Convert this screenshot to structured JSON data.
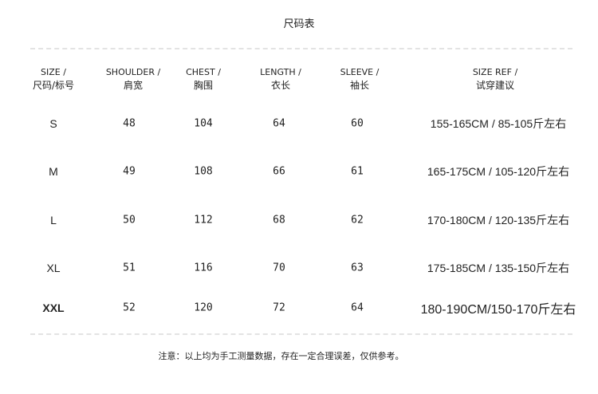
{
  "title": "尺码表",
  "headers": [
    {
      "en": "SIZE /",
      "cn": "尺码/标号"
    },
    {
      "en": "SHOULDER /",
      "cn": "肩宽"
    },
    {
      "en": "CHEST /",
      "cn": "胸围"
    },
    {
      "en": "LENGTH /",
      "cn": "衣长"
    },
    {
      "en": "SLEEVE /",
      "cn": "袖长"
    },
    {
      "en": "SIZE REF /",
      "cn": "试穿建议"
    }
  ],
  "rows": [
    [
      "S",
      "48",
      "104",
      "64",
      "60",
      "155-165CM / 85-105斤左右"
    ],
    [
      "M",
      "49",
      "108",
      "66",
      "61",
      "165-175CM / 105-120斤左右"
    ],
    [
      "L",
      "50",
      "112",
      "68",
      "62",
      "170-180CM / 120-135斤左右"
    ],
    [
      "XL",
      "51",
      "116",
      "70",
      "63",
      "175-185CM / 135-150斤左右"
    ],
    [
      "XXL",
      "52",
      "120",
      "72",
      "64",
      "180-190CM/150-170斤左右"
    ]
  ],
  "note": "注意：以上均为手工测量数据，存在一定合理误差，仅供参考。"
}
